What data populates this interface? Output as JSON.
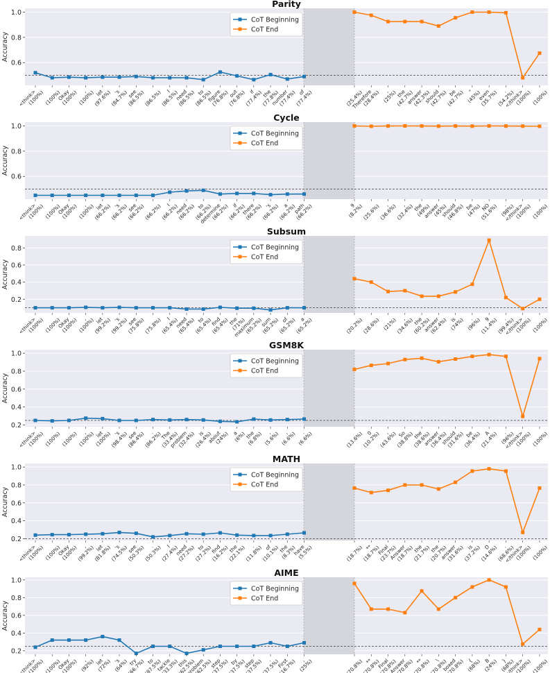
{
  "figure": {
    "ylabel": "Accuracy",
    "legend": [
      "CoT Beginning",
      "CoT End"
    ],
    "colors": {
      "beginning": "#1f77b4",
      "end": "#ff7f0e",
      "panel": "#eaeaf2",
      "gap": "#d5d5dc",
      "grid": "#ffffff",
      "baseline": "#555555"
    }
  },
  "chart_data": [
    {
      "type": "line",
      "title": "Parity",
      "ylim": [
        0.42,
        1.03
      ],
      "yticks": [
        0.6,
        0.8,
        1.0
      ],
      "baseline": 0.5,
      "beginning": {
        "labels": [
          "<think>\n(100%)",
          "\n(100%)",
          "Okay\n(100%)",
          ",\n(100%)",
          "let\n(97.6%)",
          "'s\n(84.7%)",
          "see\n(86.5%)",
          "\n(86.5%)",
          "I\n(86.5%)",
          "need\n(86.5%)",
          "to\n(86.5%)",
          "figure\n(76.8%)",
          "out\n(76.8%)",
          "if\n(77.4%)",
          "the\n(77.8%)",
          "number\n(77.4%)",
          "of\n(77.4%)"
        ],
        "values": [
          0.52,
          0.48,
          0.485,
          0.48,
          0.485,
          0.485,
          0.49,
          0.48,
          0.48,
          0.48,
          0.465,
          0.525,
          0.495,
          0.465,
          0.505,
          0.47,
          0.49
        ]
      },
      "end": {
        "labels": [
          "\n(25.4%)",
          "Therefore\n(28.4%)",
          ",\n(25%)",
          "the\n(42.7%)",
          "answer\n(42.3%)",
          "should\n(42.7%)",
          "be\n(42.7%)",
          "\"\n(45%)",
          "even\n(35.7%)",
          ".\n(54.2%)",
          "</think>\n(100%)",
          "\n(100%)"
        ],
        "values": [
          1.0,
          0.975,
          0.925,
          0.925,
          0.925,
          0.89,
          0.955,
          1.0,
          1.0,
          0.995,
          0.48,
          0.675
        ]
      }
    },
    {
      "type": "line",
      "title": "Cycle",
      "ylim": [
        0.42,
        1.03
      ],
      "yticks": [
        0.6,
        0.8,
        1.0
      ],
      "baseline": 0.5,
      "beginning": {
        "labels": [
          "<think>\n(100%)",
          "\n(100%)",
          "Okay\n(100%)",
          ",\n(100%)",
          "let\n(66.2%)",
          "'s\n(66.2%)",
          "see\n(66.2%)",
          "\n(66.2%)",
          "I\n(66.2%)",
          "need\n(66.2%)",
          "to\n(66.2%)",
          "determine\n(66.2%)",
          "if\n(66.2%)",
          "there\n(66.2%)",
          "'s\n(66.2%)",
          "a\n(66.2%)",
          "path\n(66.2%)"
        ],
        "values": [
          0.45,
          0.45,
          0.45,
          0.45,
          0.45,
          0.45,
          0.45,
          0.45,
          0.475,
          0.485,
          0.49,
          0.46,
          0.465,
          0.465,
          0.455,
          0.46,
          0.46
        ]
      },
      "end": {
        "labels": [
          "9\n(8.2%)",
          "\n(25.6%)",
          ",\n(36.6%)",
          ",\n(32.4%)",
          "the\n(49%)",
          "answer\n(45%)",
          "should\n(46.8%)",
          "be\n(47%)",
          "NO\n(51.6%)",
          ".\n(98%)",
          "</think>\n(100%)",
          "\n(100%)"
        ],
        "values": [
          1.0,
          0.997,
          0.999,
          1.0,
          0.999,
          0.998,
          0.999,
          0.998,
          1.0,
          0.999,
          0.998,
          0.997
        ]
      }
    },
    {
      "type": "line",
      "title": "Subsum",
      "ylim": [
        0.04,
        0.94
      ],
      "yticks": [
        0.2,
        0.4,
        0.6,
        0.8
      ],
      "baseline": 0.1,
      "beginning": {
        "labels": [
          "<think>\n(100%)",
          "\n(100%)",
          "Okay\n(100%)",
          ",\n(100%)",
          "let\n(99.2%)",
          "'s\n(99.2%)",
          "see\n(75.8%)",
          "\n(75.8%)",
          "I\n(65.4%)",
          "need\n(65.4%)",
          "to\n(65.4%)",
          "find\n(65.4%)",
          "the\n(71%)",
          "maximum\n(65.2%)",
          "sum\n(65.2%)",
          "of\n(65.2%)",
          "a\n(65.2%)"
        ],
        "values": [
          0.1,
          0.1,
          0.1,
          0.105,
          0.1,
          0.105,
          0.1,
          0.1,
          0.1,
          0.085,
          0.085,
          0.105,
          0.095,
          0.095,
          0.075,
          0.1,
          0.1
        ]
      },
      "end": {
        "labels": [
          "\n(20.2%)",
          "\n(28.6%)",
          "\n(21%)",
          ",\n(34.6%)",
          "the\n(60.2%)",
          "answer\n(62.4%)",
          "is\n(74%)",
          ".\n(96%)",
          "9\n(11.4%)",
          ".\n(99.4%)",
          "</think>\n(100%)",
          "\n(100%)"
        ],
        "values": [
          0.44,
          0.4,
          0.29,
          0.3,
          0.235,
          0.235,
          0.285,
          0.375,
          0.89,
          0.22,
          0.09,
          0.2
        ]
      }
    },
    {
      "type": "line",
      "title": "GSM8K",
      "ylim": [
        0.18,
        1.04
      ],
      "yticks": [
        0.2,
        0.4,
        0.6,
        0.8,
        1.0
      ],
      "baseline": 0.25,
      "beginning": {
        "labels": [
          "<think>\n(100%)",
          "\n(100%)",
          "\n(100%)",
          ",\n(100%)",
          "let\n(100%)",
          "'s\n(98.4%)",
          "see\n(86.4%)",
          ".\n(86.2%)",
          "The\n(33.4%)",
          "problem\n(32.4%)",
          "is\n(26.4%)",
          "about\n(24%)",
          "a\n(6%)",
          "the\n(6.8%)",
          ",\n(5.6%)",
          ",\n(6.6%)",
          ".\n(6.6%)"
        ],
        "values": [
          0.25,
          0.245,
          0.25,
          0.275,
          0.27,
          0.25,
          0.25,
          0.26,
          0.255,
          0.26,
          0.255,
          0.24,
          0.235,
          0.265,
          0.255,
          0.26,
          0.265
        ]
      },
      "end": {
        "labels": [
          "\n(13.6%)",
          "0\n(10.2%)",
          ",\n(43.6%)",
          "So\n(38.8%)",
          "the\n(38.6%)",
          "answer\n(36.4%)",
          "should\n(31.6%)",
          "be\n(36.4%)",
          "A\n(21.4%)",
          ".\n(96%)",
          "</think>\n(100%)",
          "\n(100%)"
        ],
        "values": [
          0.82,
          0.865,
          0.885,
          0.93,
          0.945,
          0.905,
          0.935,
          0.965,
          0.985,
          0.965,
          0.295,
          0.94
        ]
      }
    },
    {
      "type": "line",
      "title": "MATH",
      "ylim": [
        0.18,
        1.04
      ],
      "yticks": [
        0.2,
        0.4,
        0.6,
        0.8,
        1.0
      ],
      "baseline": 0.2,
      "beginning": {
        "labels": [
          "<think>\n(100%)",
          "\n(100%)",
          "Okay\n(100%)",
          ",\n(99.2%)",
          "let\n(81.8%)",
          "'s\n(74.5%)",
          "see\n(50.3%)",
          ".\n(50.3%)",
          "I\n(27.4%)",
          "need\n(27.2%)",
          "to\n(27.2%)",
          "find\n(16.2%)",
          "the\n(22.1%)",
          ".\n(11.8%)",
          "of\n(10.1%)",
          "the\n(8.3%)",
          "have\n(5.5%)"
        ],
        "values": [
          0.24,
          0.245,
          0.245,
          0.25,
          0.255,
          0.27,
          0.26,
          0.22,
          0.235,
          0.255,
          0.25,
          0.265,
          0.24,
          0.235,
          0.235,
          0.25,
          0.265
        ]
      },
      "end": {
        "labels": [
          "\n(18.7%)",
          "**\n(18.7%)",
          "Final\n(23.7%)",
          "Answer\n(18.7%)",
          "the\n(21.7%)",
          "the\n(20.7%)",
          "answer\n(31.6%)",
          "is\n(37.2%)",
          "D\n(14.6%)",
          ".\n(68.6%)",
          "</think>\n(100%)",
          "\n(100%)"
        ],
        "values": [
          0.765,
          0.715,
          0.74,
          0.8,
          0.8,
          0.755,
          0.83,
          0.955,
          0.98,
          0.955,
          0.27,
          0.765
        ]
      }
    },
    {
      "type": "line",
      "title": "AIME",
      "ylim": [
        0.16,
        1.03
      ],
      "yticks": [
        0.2,
        0.4,
        0.6,
        0.8,
        1.0
      ],
      "baseline": 0.25,
      "beginning": {
        "labels": [
          "<think>\n(100%)",
          "\n(100%)",
          "Okay\n(100%)",
          ",\n(92%)",
          "let\n(72%)",
          "'s\n(64%)",
          "try\n(66.7%)",
          "to\n(87.5%)",
          "tackle\n(33.3%)",
          "this\n(62.5%)",
          "problem\n(62.5%)",
          "step\n(37.5%)",
          "by\n(37.5%)",
          "step\n(37.5%)",
          ".\n(37.5%)",
          "First\n(16.7%)",
          ",\n(25%)"
        ],
        "values": [
          0.24,
          0.32,
          0.32,
          0.32,
          0.36,
          0.32,
          0.17,
          0.25,
          0.25,
          0.17,
          0.21,
          0.25,
          0.25,
          0.25,
          0.29,
          0.25,
          0.29
        ]
      },
      "end": {
        "labels": [
          "\n(70.8%)",
          "**\n(70.8%)",
          "Final\n(70.8%)",
          "Answer\n(70.8%)",
          "**\n(70.8%)",
          "\\\n(70.8%)",
          "boxed\n(70.8%)",
          "{\n(68%)",
          "B\n(24%)",
          "}\n(68%)",
          "</think>\n(100%)",
          "\n(100%)"
        ],
        "values": [
          0.96,
          0.67,
          0.67,
          0.63,
          0.875,
          0.67,
          0.8,
          0.92,
          1.0,
          0.92,
          0.275,
          0.44
        ]
      }
    }
  ]
}
